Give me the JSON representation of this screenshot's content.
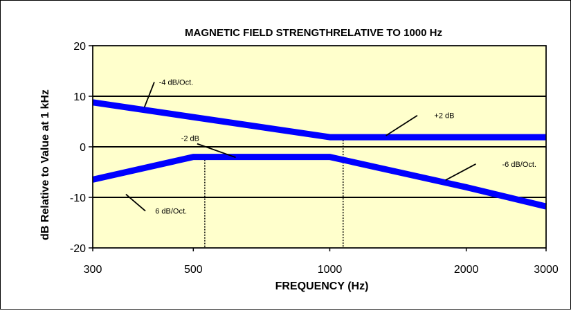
{
  "chart_data": {
    "type": "line",
    "title": "MAGNETIC FIELD STRENGTHRELATIVE TO 1000 Hz",
    "xlabel": "FREQUENCY (Hz)",
    "ylabel": "dB Relative to Value at 1 kHz",
    "x_scale": "log",
    "x_ticks": [
      300,
      500,
      1000,
      2000,
      3000
    ],
    "x_tick_labels": [
      "300",
      "500",
      "1000",
      "2000",
      "3000"
    ],
    "y_ticks": [
      -20,
      -10,
      0,
      10,
      20
    ],
    "y_tick_labels": [
      "-20",
      "-10",
      "0",
      "10",
      "20"
    ],
    "xlim": [
      300,
      3000
    ],
    "ylim": [
      -20,
      20
    ],
    "grid": "horizontal",
    "background_color": "#ffffcc",
    "series_color": "#0000ff",
    "series": [
      {
        "x": [
          300,
          1000,
          3000
        ],
        "y": [
          8.8,
          1.9,
          1.9
        ]
      },
      {
        "x": [
          300,
          500,
          1000,
          2000,
          3000
        ],
        "y": [
          -6.5,
          -2,
          -2,
          -8,
          -11.8
        ]
      }
    ],
    "vlines": [
      {
        "x": 530,
        "y_top": -2
      },
      {
        "x": 1070,
        "y_top": 1.9
      }
    ],
    "annotations": [
      {
        "text": "-4 dB/Oct.",
        "tx": 420,
        "ty": 12.8,
        "lx": [
          410,
          390
        ],
        "ly": [
          12.8,
          7.8
        ]
      },
      {
        "text": "+2 dB",
        "tx": 1700,
        "ty": 6.2,
        "lx": [
          1560,
          1330
        ],
        "ly": [
          6.2,
          2.2
        ]
      },
      {
        "text": "-2 dB",
        "tx": 470,
        "ty": 1.7,
        "lx": [
          510,
          620
        ],
        "ly": [
          0.6,
          -2.1
        ]
      },
      {
        "text": "-6 dB/Oct.",
        "tx": 2400,
        "ty": -3.4,
        "lx": [
          2100,
          1800
        ],
        "ly": [
          -3.4,
          -6.6
        ]
      },
      {
        "text": "6 dB/Oct.",
        "tx": 412,
        "ty": -12.7,
        "lx": [
          392,
          355
        ],
        "ly": [
          -12.7,
          -9.4
        ]
      }
    ]
  }
}
